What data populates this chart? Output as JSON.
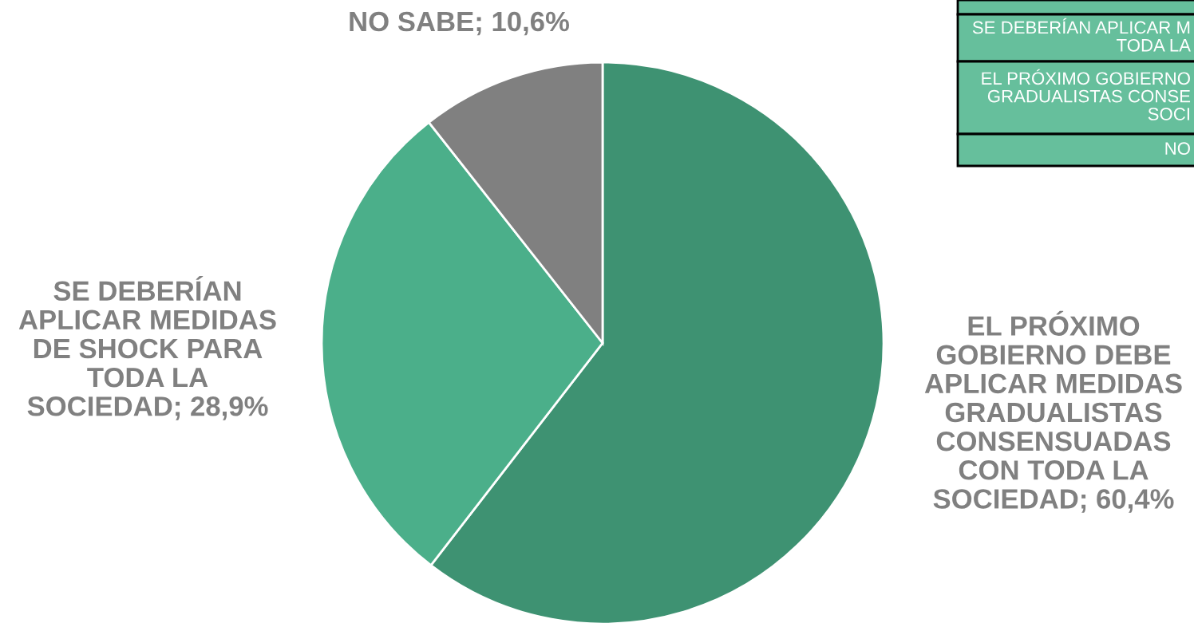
{
  "chart_data": {
    "type": "pie",
    "categories": [
      "EL PRÓXIMO\nGOBIERNO DEBE\nAPLICAR MEDIDAS\nGRADUALISTAS\nCONSENSUADAS\nCON TODA LA\nSOCIEDAD",
      "SE DEBERÍAN\nAPLICAR MEDIDAS\nDE SHOCK PARA\nTODA LA\nSOCIEDAD",
      "NO SABE"
    ],
    "values": [
      60.4,
      28.9,
      10.6
    ],
    "value_labels": [
      "60,4%",
      "28,9%",
      "10,6%"
    ],
    "colors": [
      "#3e9272",
      "#4baf8a",
      "#808080"
    ],
    "annotations": [
      "SE DEBERÍAN APLICAR M\nTODA LA",
      "EL PRÓXIMO GOBIERNO\nGRADUALISTAS CONSE\nSOCI",
      "NO"
    ]
  }
}
